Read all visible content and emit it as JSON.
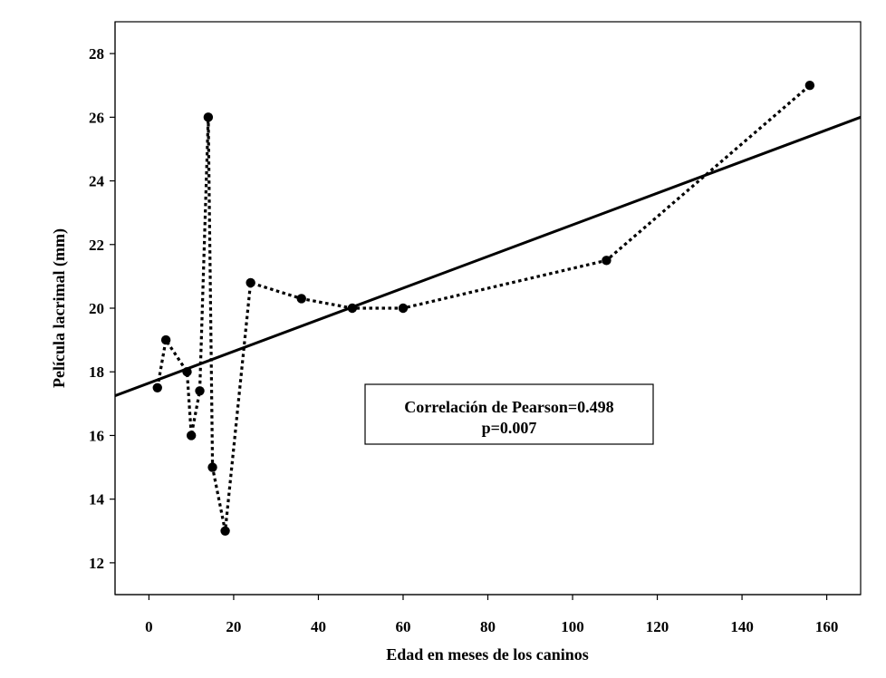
{
  "chart_data": {
    "type": "scatter",
    "title": "",
    "xlabel": "Edad en meses de los caninos",
    "ylabel": "Película lacrimal (mm)",
    "xlim": [
      -8,
      168
    ],
    "ylim": [
      11,
      29
    ],
    "xticks": [
      0,
      20,
      40,
      60,
      80,
      100,
      120,
      140,
      160
    ],
    "yticks": [
      12,
      14,
      16,
      18,
      20,
      22,
      24,
      26,
      28
    ],
    "grid": false,
    "series": [
      {
        "style": "dotted-line-with-markers",
        "color": "#000000",
        "x": [
          2,
          4,
          9,
          10,
          12,
          14,
          15,
          18,
          24,
          36,
          48,
          60,
          108,
          156
        ],
        "y": [
          17.5,
          19,
          18,
          16,
          17.4,
          26,
          15,
          13,
          20.8,
          20.3,
          20,
          20,
          21.5,
          27
        ]
      },
      {
        "style": "solid-regression-line",
        "color": "#000000",
        "x": [
          -8,
          168
        ],
        "y": [
          17.25,
          26.0
        ]
      }
    ],
    "annotation": {
      "line1": "Correlación de Pearson=0.498",
      "line2": "p=0.007"
    }
  }
}
